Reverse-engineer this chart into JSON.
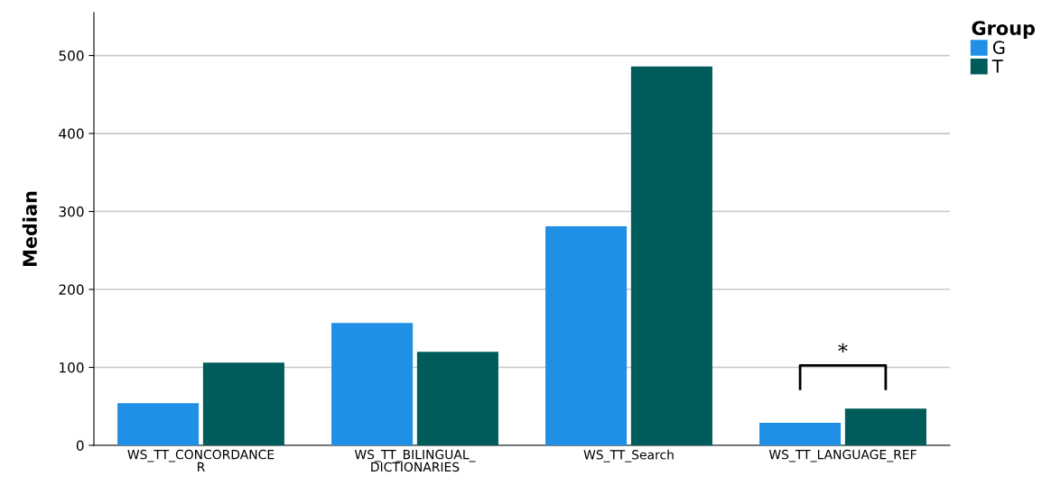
{
  "chart_data": {
    "type": "bar",
    "ylabel": "Median",
    "categories": [
      "WS_TT_CONCORDANCE\nR",
      "WS_TT_BILINGUAL_\nDICTIONARIES",
      "WS_TT_Search",
      "WS_TT_LANGUAGE_REF"
    ],
    "series": [
      {
        "name": "G",
        "color": "#1f90e6",
        "values": [
          54,
          157,
          281,
          29
        ]
      },
      {
        "name": "T",
        "color": "#005c5a",
        "values": [
          106,
          120,
          486,
          47
        ]
      }
    ],
    "ylim": [
      0,
      555
    ],
    "yticks": [
      0,
      100,
      200,
      300,
      400,
      500
    ],
    "grid": "y",
    "legend": "top right",
    "legend_title": "Group",
    "annotations": [
      "*"
    ]
  }
}
